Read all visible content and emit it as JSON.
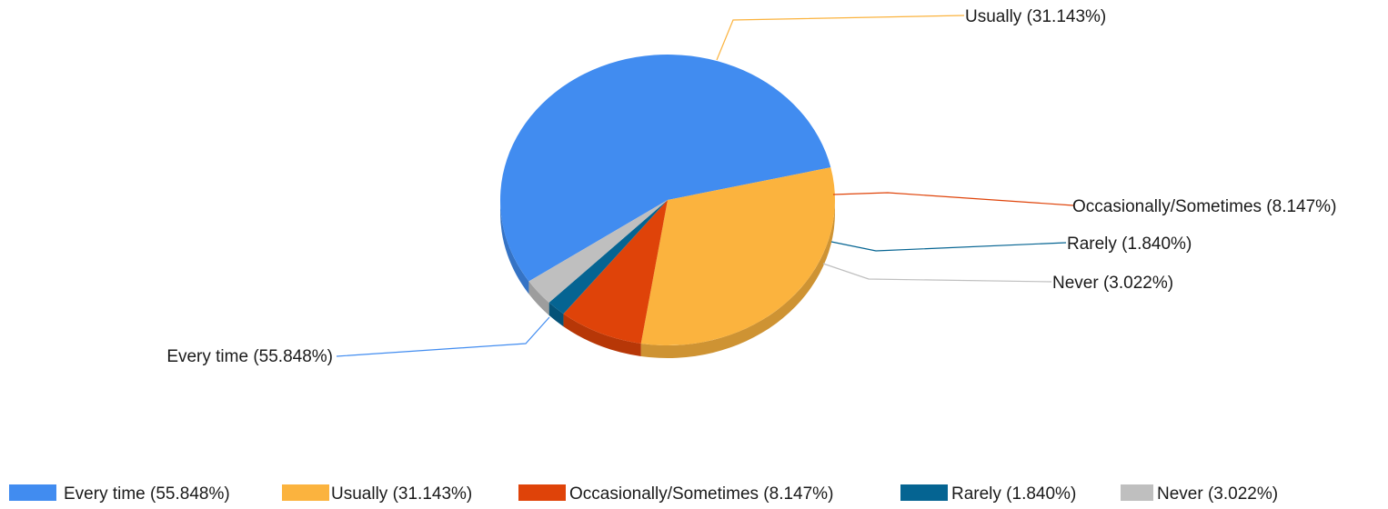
{
  "chart_data": {
    "type": "pie",
    "title": "",
    "categories": [
      "Every time",
      "Usually",
      "Occasionally/Sometimes",
      "Rarely",
      "Never"
    ],
    "values": [
      55.848,
      31.143,
      8.147,
      1.84,
      3.022
    ],
    "unit": "%",
    "slice_labels": [
      "Every time (55.848%)",
      "Usually (31.143%)",
      "Occasionally/Sometimes (8.147%)",
      "Rarely (1.840%)",
      "Never (3.022%)"
    ],
    "colors": [
      "#418CF0",
      "#FBB33E",
      "#DF4309",
      "#056492",
      "#BFBFBF"
    ],
    "legend": {
      "position": "bottom",
      "entries": [
        "Every time (55.848%)",
        "Usually (31.143%)",
        "Occasionally/Sometimes (8.147%)",
        "Rarely (1.840%)",
        "Never (3.022%)"
      ]
    },
    "style": "3d-tilted"
  }
}
